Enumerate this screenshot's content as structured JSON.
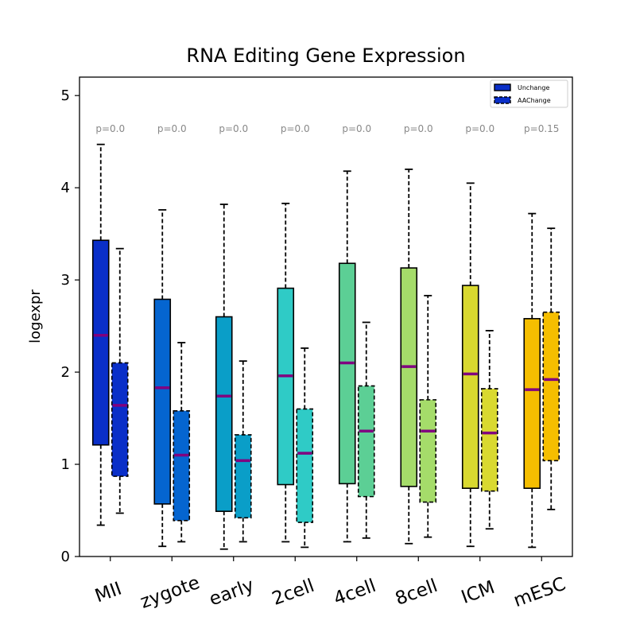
{
  "chart_data": {
    "type": "boxplot",
    "title": "RNA Editing Gene Expression",
    "xlabel": "",
    "ylabel": "logexpr",
    "ylim": [
      0,
      5.2
    ],
    "yticks": [
      "0",
      "1",
      "2",
      "3",
      "4",
      "5"
    ],
    "categories": [
      "MII",
      "zygote",
      "early",
      "2cell",
      "4cell",
      "8cell",
      "ICM",
      "mESC"
    ],
    "colors": [
      "#0a2fc8",
      "#0565d0",
      "#0a9ec8",
      "#2fcbc6",
      "#5ccf95",
      "#a5dc6a",
      "#d9d930",
      "#f5be00"
    ],
    "median_color": "#800080",
    "legend": {
      "placement": "top-right",
      "entries": [
        "Unchange",
        "AAChange"
      ]
    },
    "pvalues": [
      "p=0.0",
      "p=0.0",
      "p=0.0",
      "p=0.0",
      "p=0.0",
      "p=0.0",
      "p=0.0",
      "p=0.15"
    ],
    "series": [
      {
        "name": "Unchange",
        "style": "solid",
        "boxes": [
          {
            "whislo": 0.34,
            "q1": 1.21,
            "med": 2.4,
            "q3": 3.43,
            "whishi": 4.47
          },
          {
            "whislo": 0.11,
            "q1": 0.57,
            "med": 1.83,
            "q3": 2.79,
            "whishi": 3.76
          },
          {
            "whislo": 0.08,
            "q1": 0.49,
            "med": 1.74,
            "q3": 2.6,
            "whishi": 3.82
          },
          {
            "whislo": 0.16,
            "q1": 0.78,
            "med": 1.96,
            "q3": 2.91,
            "whishi": 3.83
          },
          {
            "whislo": 0.16,
            "q1": 0.79,
            "med": 2.1,
            "q3": 3.18,
            "whishi": 4.18
          },
          {
            "whislo": 0.14,
            "q1": 0.76,
            "med": 2.06,
            "q3": 3.13,
            "whishi": 4.2
          },
          {
            "whislo": 0.11,
            "q1": 0.74,
            "med": 1.98,
            "q3": 2.94,
            "whishi": 4.05
          },
          {
            "whislo": 0.1,
            "q1": 0.74,
            "med": 1.81,
            "q3": 2.58,
            "whishi": 3.72
          }
        ]
      },
      {
        "name": "AAChange",
        "style": "dashed",
        "boxes": [
          {
            "whislo": 0.47,
            "q1": 0.87,
            "med": 1.64,
            "q3": 2.1,
            "whishi": 3.34
          },
          {
            "whislo": 0.16,
            "q1": 0.39,
            "med": 1.1,
            "q3": 1.58,
            "whishi": 2.32
          },
          {
            "whislo": 0.16,
            "q1": 0.42,
            "med": 1.04,
            "q3": 1.32,
            "whishi": 2.12
          },
          {
            "whislo": 0.1,
            "q1": 0.37,
            "med": 1.12,
            "q3": 1.6,
            "whishi": 2.26
          },
          {
            "whislo": 0.2,
            "q1": 0.65,
            "med": 1.36,
            "q3": 1.85,
            "whishi": 2.54
          },
          {
            "whislo": 0.21,
            "q1": 0.59,
            "med": 1.36,
            "q3": 1.7,
            "whishi": 2.83
          },
          {
            "whislo": 0.3,
            "q1": 0.71,
            "med": 1.34,
            "q3": 1.82,
            "whishi": 2.45
          },
          {
            "whislo": 0.51,
            "q1": 1.04,
            "med": 1.92,
            "q3": 2.65,
            "whishi": 3.56
          }
        ]
      }
    ]
  }
}
